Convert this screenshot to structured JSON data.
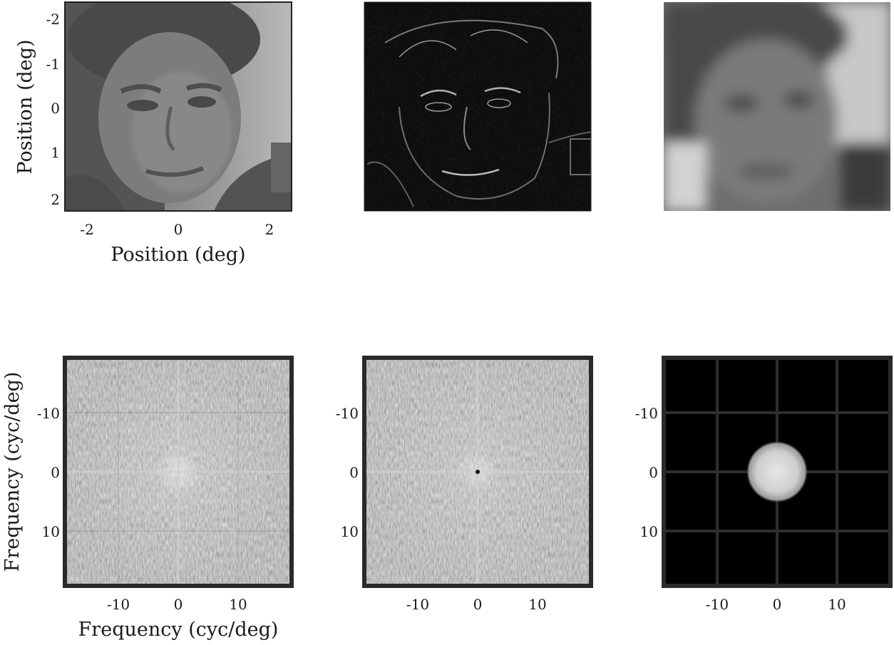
{
  "figure": {
    "top_row": {
      "panels": [
        {
          "id": "original",
          "description_name": "face-image-panel"
        },
        {
          "id": "highpass",
          "description_name": "highpass-image-panel"
        },
        {
          "id": "lowpass",
          "description_name": "lowpass-image-panel"
        }
      ],
      "y_ticks": [
        "-2",
        "-1",
        "0",
        "1",
        "2"
      ],
      "x_ticks": [
        "-2",
        "0",
        "2"
      ],
      "xlabel": "Position (deg)",
      "ylabel": "Position (deg)"
    },
    "bottom_row": {
      "y_ticks": [
        "-10",
        "0",
        "10"
      ],
      "x_ticks": [
        "-10",
        "0",
        "10"
      ],
      "xlabel": "Frequency (cyc/deg)",
      "ylabel": "Frequency (cyc/deg)"
    }
  },
  "chart_data": [
    {
      "type": "image",
      "panel": "original face image",
      "xlabel": "Position (deg)",
      "ylabel": "Position (deg)",
      "x_ticks": [
        -2,
        0,
        2
      ],
      "y_ticks": [
        -2,
        -1,
        0,
        1,
        2
      ],
      "xlim": [
        -2.5,
        2.5
      ],
      "ylim": [
        -2.3,
        2.3
      ]
    },
    {
      "type": "image",
      "panel": "high-pass filtered face (edges)"
    },
    {
      "type": "image",
      "panel": "low-pass filtered face (blurred)"
    },
    {
      "type": "heatmap",
      "panel": "amplitude spectrum of original",
      "xlabel": "Frequency (cyc/deg)",
      "ylabel": "Frequency (cyc/deg)",
      "x_ticks": [
        -10,
        0,
        10
      ],
      "y_ticks": [
        -10,
        0,
        10
      ],
      "xlim": [
        -19,
        19
      ],
      "ylim": [
        -19,
        19
      ]
    },
    {
      "type": "heatmap",
      "panel": "amplitude spectrum of high-pass",
      "x_ticks": [
        -10,
        0,
        10
      ],
      "y_ticks": [
        -10,
        0,
        10
      ],
      "xlim": [
        -19,
        19
      ],
      "ylim": [
        -19,
        19
      ]
    },
    {
      "type": "heatmap",
      "panel": "low-pass filter in frequency domain",
      "x_ticks": [
        -10,
        0,
        10
      ],
      "y_ticks": [
        -10,
        0,
        10
      ],
      "xlim": [
        -19,
        19
      ],
      "ylim": [
        -19,
        19
      ],
      "filter_radius_cyc_per_deg": 5
    }
  ]
}
